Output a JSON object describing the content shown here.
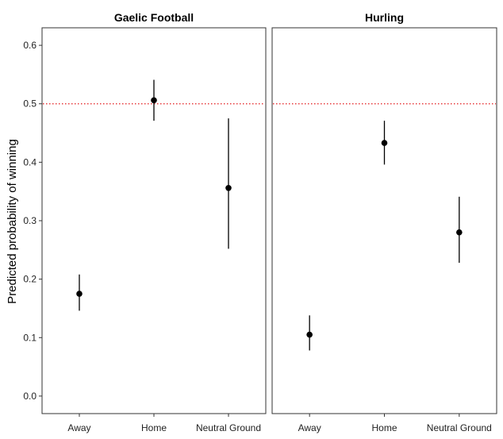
{
  "chart_data": {
    "type": "scatter",
    "ylabel": "Predicted probability of winning",
    "xlabel": "",
    "ylim": [
      -0.03,
      0.63
    ],
    "yticks": [
      0.0,
      0.1,
      0.2,
      0.3,
      0.4,
      0.5,
      0.6
    ],
    "ytick_labels": [
      "0.0",
      "0.1",
      "0.2",
      "0.3",
      "0.4",
      "0.5",
      "0.6"
    ],
    "categories": [
      "Away",
      "Home",
      "Neutral Ground"
    ],
    "reference_line": {
      "y": 0.5,
      "color": "#e41a1c",
      "style": "dotted"
    },
    "grid": false,
    "point_color": "#000000",
    "panels": [
      {
        "title": "Gaelic Football",
        "points": [
          {
            "category": "Away",
            "y": 0.175,
            "lower": 0.146,
            "upper": 0.208
          },
          {
            "category": "Home",
            "y": 0.506,
            "lower": 0.471,
            "upper": 0.541
          },
          {
            "category": "Neutral Ground",
            "y": 0.356,
            "lower": 0.252,
            "upper": 0.475
          }
        ]
      },
      {
        "title": "Hurling",
        "points": [
          {
            "category": "Away",
            "y": 0.105,
            "lower": 0.078,
            "upper": 0.138
          },
          {
            "category": "Home",
            "y": 0.433,
            "lower": 0.396,
            "upper": 0.471
          },
          {
            "category": "Neutral Ground",
            "y": 0.28,
            "lower": 0.228,
            "upper": 0.341
          }
        ]
      }
    ]
  }
}
